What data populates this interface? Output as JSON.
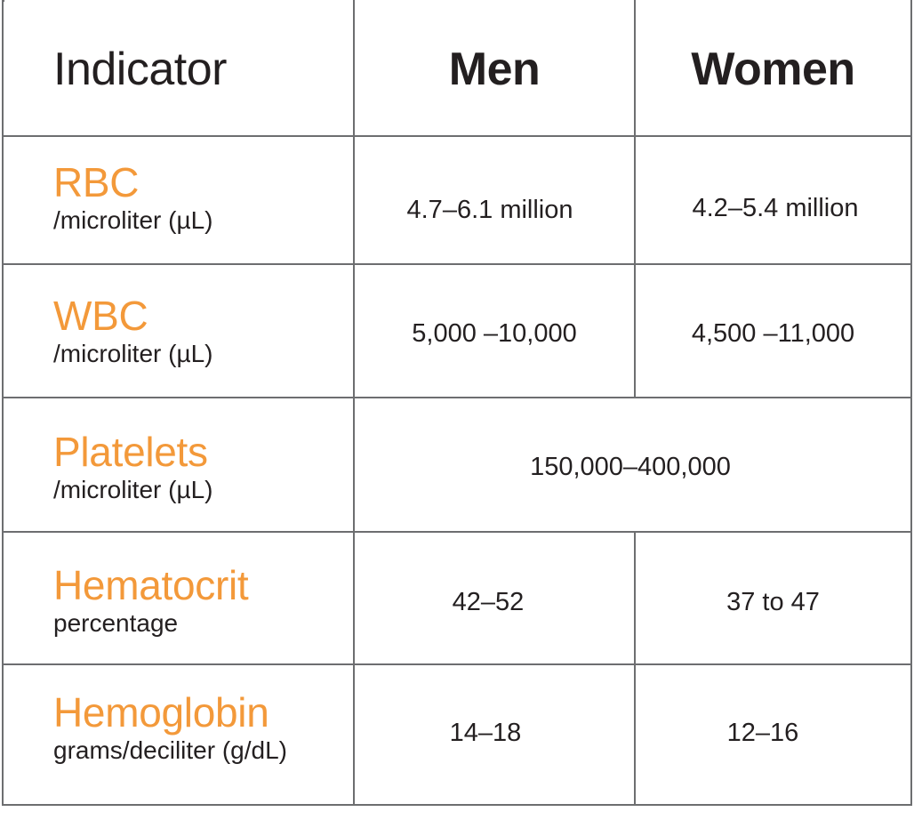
{
  "header": {
    "indicator": "Indicator",
    "men": "Men",
    "women": "Women"
  },
  "rows": [
    {
      "name": "RBC",
      "unit": "/microliter (µL)",
      "men": "4.7–6.1 million",
      "women": "4.2–5.4 million"
    },
    {
      "name": "WBC",
      "unit": "/microliter (µL)",
      "men": "5,000 –10,000",
      "women": "4,500 –11,000"
    },
    {
      "name": "Platelets",
      "unit": "/microliter (µL)",
      "combined": "150,000–400,000"
    },
    {
      "name": "Hematocrit",
      "unit": "percentage",
      "men": "42–52",
      "women": "37 to 47"
    },
    {
      "name": "Hemoglobin",
      "unit": "grams/deciliter (g/dL)",
      "men": "14–18",
      "women": "12–16"
    }
  ],
  "colors": {
    "indicator_name": "#f3993a",
    "text": "#231f20",
    "grid": "#6d6e70"
  }
}
